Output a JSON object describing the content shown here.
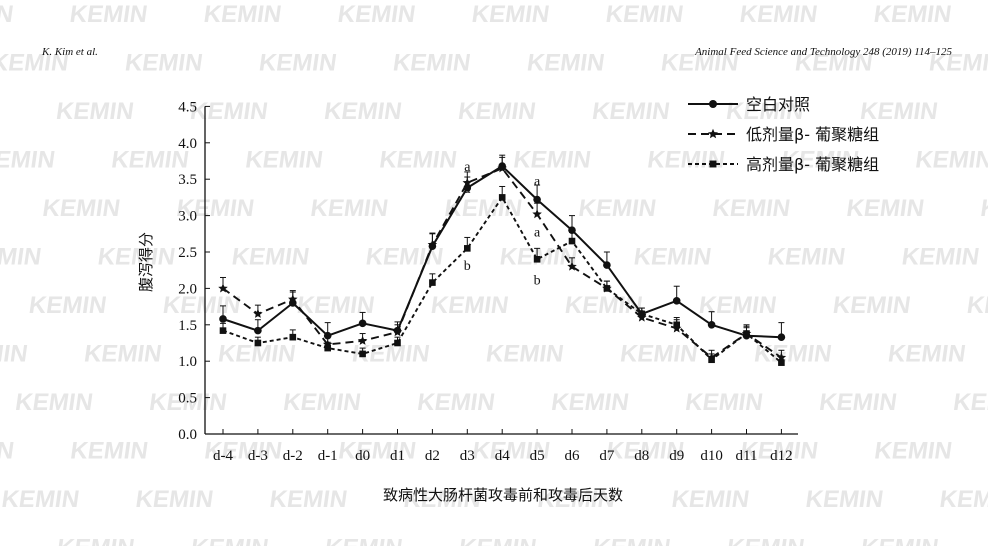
{
  "header": {
    "left": "K. Kim et al.",
    "right": "Animal Feed Science and Technology 248 (2019) 114–125"
  },
  "watermark": {
    "text": "KEMIN",
    "color": "#e6e6e6"
  },
  "chart_data": {
    "type": "line",
    "categories": [
      "d-4",
      "d-3",
      "d-2",
      "d-1",
      "d0",
      "d1",
      "d2",
      "d3",
      "d4",
      "d5",
      "d6",
      "d7",
      "d8",
      "d9",
      "d10",
      "d11",
      "d12"
    ],
    "xlabel": "致病性大肠杆菌攻毒前和攻毒后天数",
    "ylabel": "腹泻得分",
    "ylim": [
      0,
      4.5
    ],
    "yticks": [
      "0.0",
      "0.5",
      "1.0",
      "1.5",
      "2.0",
      "2.5",
      "3.0",
      "3.5",
      "4.0",
      "4.5"
    ],
    "legend_position": "top-right",
    "grid": false,
    "series": [
      {
        "name": "空白对照",
        "line_style": "solid",
        "marker": "circle",
        "values": [
          1.58,
          1.42,
          1.8,
          1.35,
          1.52,
          1.42,
          2.58,
          3.38,
          3.68,
          3.22,
          2.8,
          2.32,
          1.65,
          1.83,
          1.5,
          1.35,
          1.33
        ],
        "errors": [
          0.18,
          0.15,
          0.15,
          0.18,
          0.15,
          0.12,
          0.18,
          0.15,
          0.15,
          0.2,
          0.2,
          0.18,
          0.08,
          0.2,
          0.18,
          0.15,
          0.2
        ]
      },
      {
        "name": "低剂量β- 葡聚糖组",
        "line_style": "dashed",
        "marker": "star",
        "values": [
          2.0,
          1.65,
          1.85,
          1.23,
          1.28,
          1.4,
          2.6,
          3.45,
          3.65,
          3.02,
          2.3,
          2.0,
          1.6,
          1.45,
          1.05,
          1.38,
          1.05
        ],
        "errors": [
          0.15,
          0.12,
          0.12,
          0.12,
          0.1,
          0.1,
          0.15,
          0.15,
          0.15,
          0.15,
          0.12,
          0.1,
          0.08,
          0.12,
          0.1,
          0.1,
          0.1
        ]
      },
      {
        "name": "高剂量β- 葡聚糖组",
        "line_style": "dotted",
        "marker": "square",
        "values": [
          1.42,
          1.25,
          1.33,
          1.18,
          1.1,
          1.25,
          2.08,
          2.55,
          3.25,
          2.4,
          2.65,
          2.0,
          1.65,
          1.5,
          1.02,
          1.38,
          0.98
        ],
        "errors": [
          0.1,
          0.08,
          0.1,
          0.08,
          0.08,
          0.08,
          0.12,
          0.15,
          0.15,
          0.15,
          0.12,
          0.1,
          0.08,
          0.1,
          0.08,
          0.08,
          0.08
        ]
      }
    ],
    "annotations": [
      {
        "text": "a",
        "category": "d3",
        "value": 3.68
      },
      {
        "text": "a",
        "category": "d3",
        "value": 3.38
      },
      {
        "text": "b",
        "category": "d3",
        "value": 2.32
      },
      {
        "text": "a",
        "category": "d5",
        "value": 3.48
      },
      {
        "text": "a",
        "category": "d5",
        "value": 2.78
      },
      {
        "text": "b",
        "category": "d5",
        "value": 2.12
      }
    ]
  }
}
